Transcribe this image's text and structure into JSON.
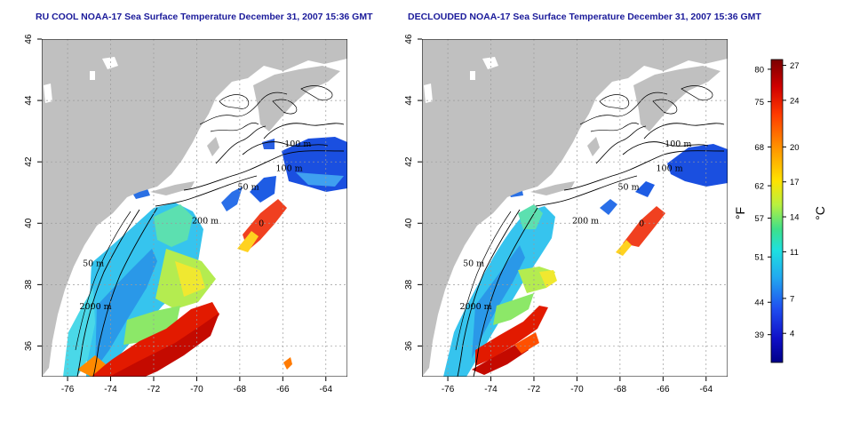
{
  "titles": {
    "left": "RU COOL NOAA-17 Sea Surface Temperature December 31, 2007 15:36 GMT",
    "right": "DECLOUDED NOAA-17 Sea Surface Temperature December 31, 2007 15:36 GMT"
  },
  "map": {
    "lon_range": [
      -77.2,
      -63.0
    ],
    "lat_range": [
      35.0,
      46.0
    ],
    "lon_ticks": [
      -76,
      -74,
      -72,
      -70,
      -68,
      -66,
      -64
    ],
    "lat_ticks": [
      36,
      38,
      40,
      42,
      44,
      46
    ],
    "grid": "dotted",
    "colors": {
      "land": "#c0c0c0",
      "no_data": "#ffffff",
      "frame": "#000000",
      "contour": "#000000"
    }
  },
  "contour_labels": [
    {
      "text": "100 m",
      "lon": -65.3,
      "lat": 42.5
    },
    {
      "text": "100 m",
      "lon": -65.7,
      "lat": 41.7
    },
    {
      "text": "50 m",
      "lon": -67.6,
      "lat": 41.1
    },
    {
      "text": "200 m",
      "lon": -69.6,
      "lat": 40.0
    },
    {
      "text": "0",
      "lon": -67.0,
      "lat": 39.9
    },
    {
      "text": "50 m",
      "lon": -74.8,
      "lat": 38.6
    },
    {
      "text": "2000 m",
      "lon": -74.7,
      "lat": 37.2
    }
  ],
  "colorbar": {
    "fahrenheit_label": "°F",
    "celsius_label": "°C",
    "fahrenheit_ticks": [
      "80",
      "75",
      "68",
      "62",
      "57",
      "51",
      "44",
      "39"
    ],
    "celsius_ticks": [
      "27",
      "24",
      "20",
      "17",
      "14",
      "11",
      "7",
      "4"
    ],
    "celsius_range": [
      1.5,
      27.5
    ],
    "fahrenheit_values": [
      80,
      75,
      68,
      62,
      57,
      51,
      44,
      39
    ],
    "celsius_values": [
      27,
      24,
      20,
      17,
      14,
      11,
      7,
      4
    ],
    "gradient": [
      "#7a0000",
      "#d00000",
      "#ff3a00",
      "#ff9a00",
      "#ffe200",
      "#b8f040",
      "#3ee08a",
      "#1ee0e0",
      "#22a8f0",
      "#2050f0",
      "#1010c8",
      "#000088"
    ]
  }
}
